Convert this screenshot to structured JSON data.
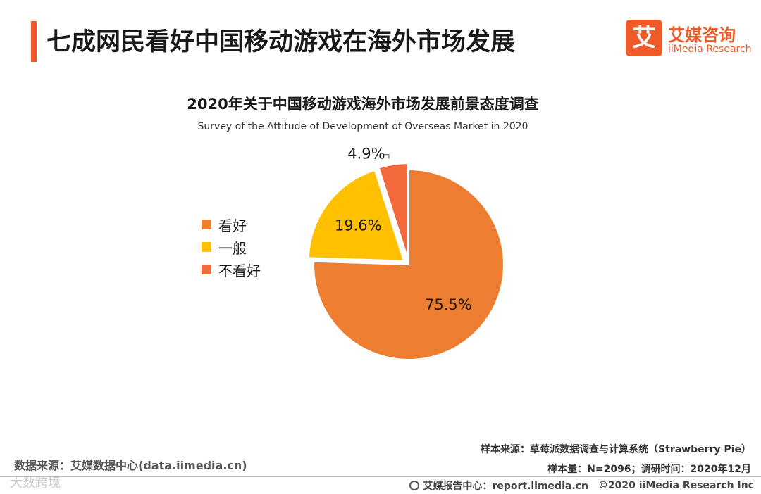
{
  "header": {
    "title": "七成网民看好中国移动游戏在海外市场发展",
    "logo_mark": "艾",
    "logo_cn": "艾媒咨询",
    "logo_en": "iiMedia Research"
  },
  "colors": {
    "accent": "#f05a28",
    "optimistic": "#ed7d31",
    "neutral": "#ffc000",
    "pessimistic": "#f4693c"
  },
  "chart_data": {
    "type": "pie",
    "title": "2020年关于中国移动游戏海外市场发展前景态度调查",
    "subtitle": "Survey of the Attitude of Development of Overseas Market in 2020",
    "categories": [
      "看好",
      "一般",
      "不看好"
    ],
    "values": [
      75.5,
      19.6,
      4.9
    ],
    "value_labels": [
      "75.5%",
      "19.6%",
      "4.9%"
    ],
    "legend": "left"
  },
  "footer": {
    "source_left": "数据来源：艾媒数据中心(data.iimedia.cn)",
    "watermark": "大数跨境",
    "sample_source": "样本来源：草莓派数据调查与计算系统（Strawberry Pie）",
    "sample_info": "样本量：N=2096；调研时间：2020年12月",
    "report_center": "艾媒报告中心：report.iimedia.cn",
    "copyright": "©2020  iiMedia Research  Inc"
  }
}
